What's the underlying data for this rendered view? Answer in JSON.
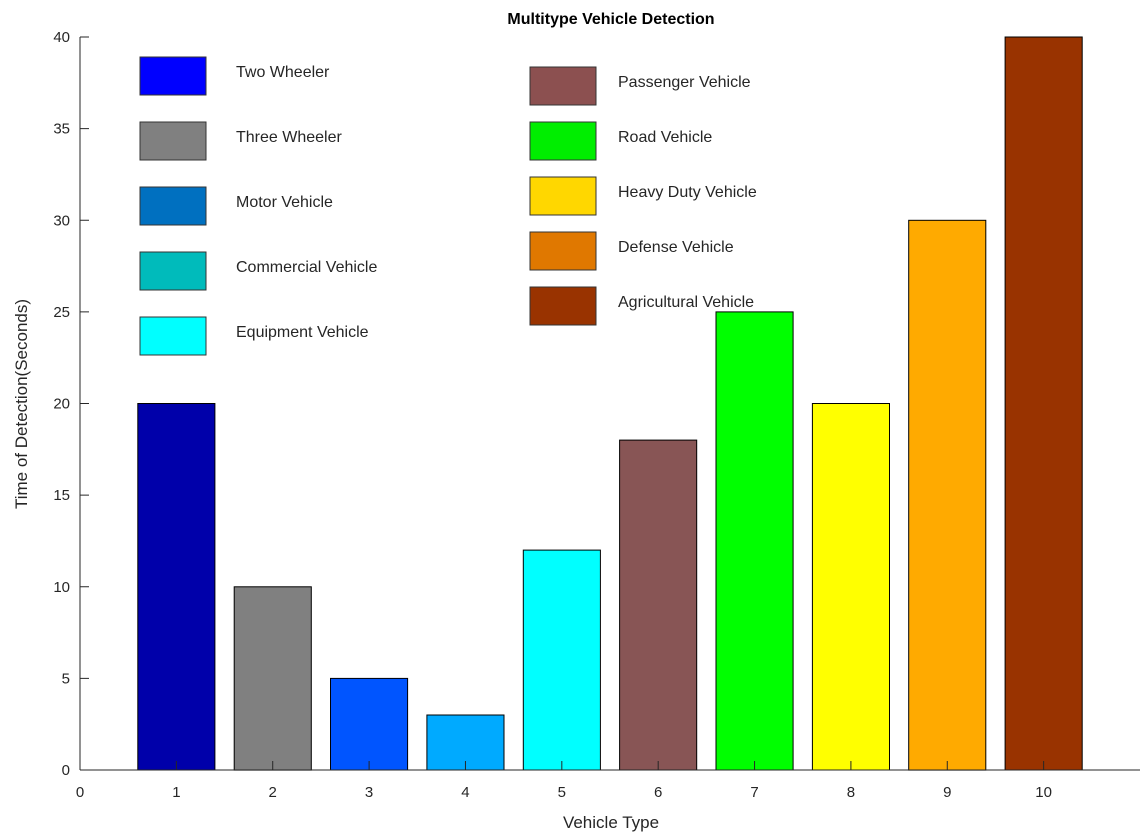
{
  "chart_data": {
    "type": "bar",
    "title": "Multitype Vehicle Detection",
    "xlabel": "Vehicle Type",
    "ylabel": "Time of Detection(Seconds)",
    "xlim": [
      0,
      11
    ],
    "ylim": [
      0,
      40
    ],
    "xticks": [
      "0",
      "1",
      "2",
      "3",
      "4",
      "5",
      "6",
      "7",
      "8",
      "9",
      "10"
    ],
    "yticks": [
      "0",
      "5",
      "10",
      "15",
      "20",
      "25",
      "30",
      "35",
      "40"
    ],
    "categories": [
      1,
      2,
      3,
      4,
      5,
      6,
      7,
      8,
      9,
      10
    ],
    "values": [
      20,
      10,
      5,
      3,
      12,
      18,
      25,
      20,
      30,
      40
    ],
    "bar_colors": [
      "#0000AA",
      "#808080",
      "#0055FF",
      "#00AAFF",
      "#00FFFF",
      "#885555",
      "#00FF00",
      "#FFFF00",
      "#FFAA00",
      "#993300"
    ],
    "grid": false,
    "legend": [
      {
        "label": "Two Wheeler",
        "color": "#0000FF"
      },
      {
        "label": "Three Wheeler",
        "color": "#808080"
      },
      {
        "label": "Motor Vehicle",
        "color": "#0070C0"
      },
      {
        "label": "Commercial Vehicle",
        "color": "#00BBBB"
      },
      {
        "label": "Equipment Vehicle",
        "color": "#00FFFF"
      },
      {
        "label": "Passenger Vehicle",
        "color": "#8C5050"
      },
      {
        "label": "Road Vehicle",
        "color": "#00EE00"
      },
      {
        "label": "Heavy Duty Vehicle",
        "color": "#FFD700"
      },
      {
        "label": "Defense Vehicle",
        "color": "#E07800"
      },
      {
        "label": "Agricultural Vehicle",
        "color": "#993300"
      }
    ]
  }
}
